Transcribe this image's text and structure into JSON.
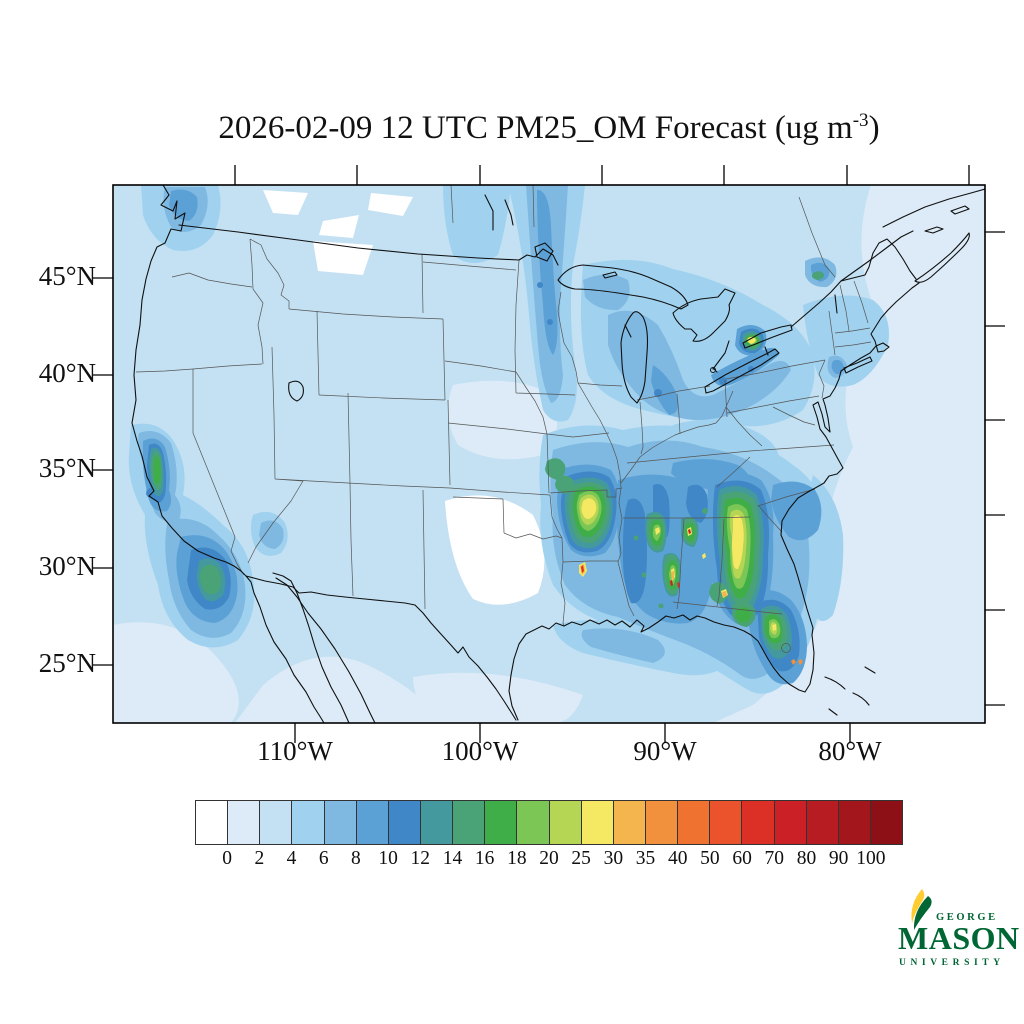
{
  "title": {
    "prefix": "2026-02-09 12 UTC PM25_OM Forecast (ug m",
    "exponent": "-3",
    "suffix": ")"
  },
  "map_axes": {
    "lat_ticks": [
      "45°N",
      "40°N",
      "35°N",
      "30°N",
      "25°N"
    ],
    "lon_ticks": [
      "110°W",
      "100°W",
      "90°W",
      "80°W"
    ]
  },
  "colorbar": {
    "labels": [
      "0",
      "2",
      "4",
      "6",
      "8",
      "10",
      "12",
      "14",
      "16",
      "18",
      "20",
      "25",
      "30",
      "35",
      "40",
      "50",
      "60",
      "70",
      "80",
      "90",
      "100"
    ],
    "colors": [
      "#FFFFFF",
      "#DCEBF7",
      "#C3E1F3",
      "#A0D2EF",
      "#7FB9E2",
      "#5CA1D5",
      "#3F87C7",
      "#44999E",
      "#49A377",
      "#3FAE49",
      "#7BC655",
      "#B5D554",
      "#F5E862",
      "#F5B54E",
      "#F2913D",
      "#EF7230",
      "#EA532B",
      "#DC3027",
      "#CC2027",
      "#B61C22",
      "#A2161C",
      "#8C1016"
    ]
  },
  "logo": {
    "line1": "GEORGE",
    "line2": "MASON",
    "line3": "UNIVERSITY",
    "green": "#006633",
    "gold": "#FFCC33"
  },
  "chart_data": {
    "type": "contour-map",
    "title": "2026-02-09 12 UTC PM25_OM Forecast (ug m-3)",
    "variable": "PM25_OM",
    "units": "ug m-3",
    "valid_time": "2026-02-09 12 UTC",
    "region": "Contiguous United States with parts of Canada and Mexico",
    "projection": "Lambert-conformal style, frame 25N-49N, 120W-73W approx",
    "x_axis": {
      "label_ticks": [
        "110°W",
        "100°W",
        "90°W",
        "80°W"
      ]
    },
    "y_axis": {
      "label_ticks": [
        "45°N",
        "40°N",
        "35°N",
        "30°N",
        "25°N"
      ]
    },
    "contour_levels": [
      0,
      2,
      4,
      6,
      8,
      10,
      12,
      14,
      16,
      18,
      20,
      25,
      30,
      35,
      40,
      50,
      60,
      70,
      80,
      90,
      100
    ],
    "palette": [
      "#FFFFFF",
      "#DCEBF7",
      "#C3E1F3",
      "#A0D2EF",
      "#7FB9E2",
      "#5CA1D5",
      "#3F87C7",
      "#44999E",
      "#49A377",
      "#3FAE49",
      "#7BC655",
      "#B5D554",
      "#F5E862",
      "#F5B54E",
      "#F2913D",
      "#EF7230",
      "#EA532B",
      "#DC3027",
      "#CC2027",
      "#B61C22",
      "#A2161C",
      "#8C1016"
    ],
    "legend_position": "bottom horizontal colorbar",
    "grid": "state and national borders drawn, no lat/lon gridlines",
    "notable_features": [
      {
        "area": "Southeast Arkansas / northern Louisiana",
        "value_range_ug_m3": "20-30 broad, 60-80 tiny core",
        "description": "largest green mass with elongated yellow core and a small red speck"
      },
      {
        "area": "Alabama / Mississippi",
        "value_range_ug_m3": "14-30 streaks, 50-80 specks",
        "description": "several vertical green streaks with yellow cores and tiny red-orange hotspots"
      },
      {
        "area": "Central Georgia",
        "value_range_ug_m3": "18-30",
        "description": "long north-south green band with yellow core"
      },
      {
        "area": "Central Florida",
        "value_range_ug_m3": "16-30, small 35-40 dots in south Florida",
        "description": "green patch with yellow core, two tiny orange dots near Lake Okeechobee"
      },
      {
        "area": "Mississippi/Alabama/Georgia background",
        "value_range_ug_m3": "8-12",
        "description": "large steel-blue region across the Deep South"
      },
      {
        "area": "California Central Valley",
        "value_range_ug_m3": "14-18",
        "description": "narrow green streak surrounded by blue"
      },
      {
        "area": "Offshore Southern California / Baja",
        "value_range_ug_m3": "10-16",
        "description": "broad blue plume with teal-green core"
      },
      {
        "area": "Minnesota / Manitoba",
        "value_range_ug_m3": "6-10",
        "description": "north-south blue band from Canada"
      },
      {
        "area": "Western Lake Ontario (Toronto)",
        "value_range_ug_m3": "20-30",
        "description": "small yellow hotspot ringed in green"
      },
      {
        "area": "Montreal / Ottawa valley",
        "value_range_ug_m3": "8-16",
        "description": "small blue blob with green dash"
      },
      {
        "area": "New York City",
        "value_range_ug_m3": "6-10",
        "description": "small blue dot"
      },
      {
        "area": "Continental background",
        "value_range_ug_m3": "0-6"
      }
    ]
  }
}
